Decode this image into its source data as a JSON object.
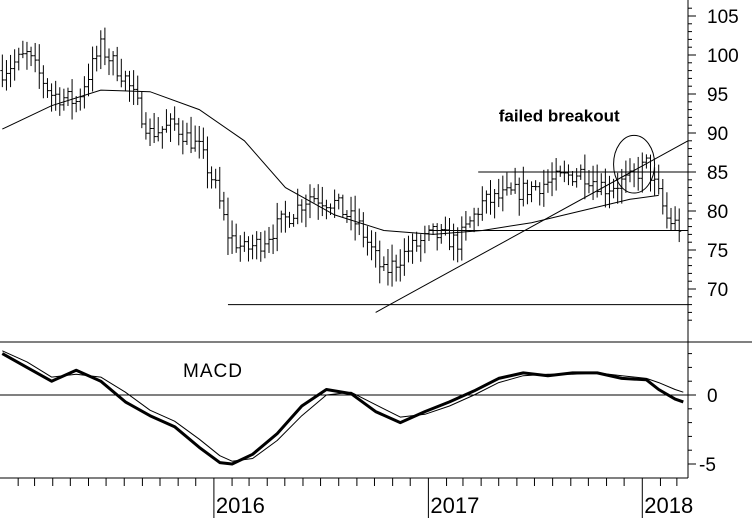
{
  "chart_data": [
    {
      "type": "bar",
      "style": "OHLC weekly bars",
      "title": "",
      "xlabel": "",
      "ylabel": "",
      "ylim": [
        65,
        106
      ],
      "y_ticks": [
        "105",
        "100",
        "95",
        "90",
        "85",
        "80",
        "75",
        "70"
      ],
      "x_ticks": [
        "2016",
        "2017",
        "2018"
      ],
      "x_range": [
        "2015-01-01",
        "2018-03-20"
      ],
      "grid": false,
      "price_close": [
        {
          "x": "2015-01-05",
          "y": 98
        },
        {
          "x": "2015-02-16",
          "y": 100
        },
        {
          "x": "2015-03-30",
          "y": 95
        },
        {
          "x": "2015-05-11",
          "y": 94
        },
        {
          "x": "2015-06-22",
          "y": 101
        },
        {
          "x": "2015-08-03",
          "y": 97
        },
        {
          "x": "2015-09-14",
          "y": 90
        },
        {
          "x": "2015-10-26",
          "y": 91
        },
        {
          "x": "2015-12-07",
          "y": 88
        },
        {
          "x": "2016-01-04",
          "y": 83
        },
        {
          "x": "2016-01-25",
          "y": 77
        },
        {
          "x": "2016-02-22",
          "y": 75
        },
        {
          "x": "2016-03-21",
          "y": 76
        },
        {
          "x": "2016-05-02",
          "y": 79
        },
        {
          "x": "2016-06-13",
          "y": 82
        },
        {
          "x": "2016-07-25",
          "y": 81
        },
        {
          "x": "2016-09-05",
          "y": 78
        },
        {
          "x": "2016-10-17",
          "y": 72
        },
        {
          "x": "2016-11-28",
          "y": 75
        },
        {
          "x": "2017-01-09",
          "y": 77
        },
        {
          "x": "2017-02-20",
          "y": 76
        },
        {
          "x": "2017-04-03",
          "y": 81
        },
        {
          "x": "2017-05-15",
          "y": 82
        },
        {
          "x": "2017-06-26",
          "y": 83
        },
        {
          "x": "2017-08-07",
          "y": 84
        },
        {
          "x": "2017-09-18",
          "y": 85
        },
        {
          "x": "2017-10-30",
          "y": 83
        },
        {
          "x": "2017-12-11",
          "y": 84
        },
        {
          "x": "2018-01-08",
          "y": 86
        },
        {
          "x": "2018-01-29",
          "y": 82
        },
        {
          "x": "2018-02-12",
          "y": 79
        },
        {
          "x": "2018-03-05",
          "y": 78
        }
      ],
      "moving_average": [
        {
          "x": "2015-01-05",
          "y": 90.5
        },
        {
          "x": "2015-03-30",
          "y": 93.5
        },
        {
          "x": "2015-06-22",
          "y": 95.5
        },
        {
          "x": "2015-09-14",
          "y": 95.3
        },
        {
          "x": "2015-12-07",
          "y": 93
        },
        {
          "x": "2016-02-22",
          "y": 89
        },
        {
          "x": "2016-05-02",
          "y": 83
        },
        {
          "x": "2016-07-25",
          "y": 79.5
        },
        {
          "x": "2016-10-17",
          "y": 77.5
        },
        {
          "x": "2017-01-09",
          "y": 77
        },
        {
          "x": "2017-04-03",
          "y": 77.5
        },
        {
          "x": "2017-06-26",
          "y": 78.5
        },
        {
          "x": "2017-09-18",
          "y": 80
        },
        {
          "x": "2017-12-11",
          "y": 81.5
        },
        {
          "x": "2018-01-29",
          "y": 82
        }
      ],
      "trendlines": [
        {
          "from": {
            "x": "2016-10-03",
            "y": 67
          },
          "to": {
            "x": "2018-03-20",
            "y": 89
          }
        },
        {
          "from": {
            "x": "2016-01-25",
            "y": 68
          },
          "to": {
            "x": "2018-03-20",
            "y": 68
          }
        },
        {
          "from": {
            "x": "2017-03-27",
            "y": 85
          },
          "to": {
            "x": "2018-03-20",
            "y": 85
          }
        },
        {
          "from": {
            "x": "2017-01-02",
            "y": 77.5
          },
          "to": {
            "x": "2018-03-20",
            "y": 77.5
          }
        }
      ],
      "annotations": [
        {
          "text": "failed breakout",
          "x": "2017-05-01",
          "y": 91.5
        },
        {
          "shape": "ellipse",
          "cx": "2017-12-18",
          "cy": 86,
          "rx_days": 35,
          "ry": 3.7
        }
      ]
    },
    {
      "type": "line",
      "title": "MACD",
      "ylim": [
        -5.6,
        5.2
      ],
      "y_ticks": [
        "0",
        "-5"
      ],
      "zero_line": true,
      "series": [
        {
          "name": "",
          "style": "thick",
          "points": [
            {
              "x": "2015-01-05",
              "y": 3
            },
            {
              "x": "2015-02-16",
              "y": 2
            },
            {
              "x": "2015-03-30",
              "y": 1
            },
            {
              "x": "2015-05-11",
              "y": 1.8
            },
            {
              "x": "2015-06-22",
              "y": 1
            },
            {
              "x": "2015-08-03",
              "y": -0.5
            },
            {
              "x": "2015-09-14",
              "y": -1.5
            },
            {
              "x": "2015-10-26",
              "y": -2.3
            },
            {
              "x": "2015-12-07",
              "y": -3.8
            },
            {
              "x": "2016-01-11",
              "y": -4.9
            },
            {
              "x": "2016-02-01",
              "y": -5
            },
            {
              "x": "2016-03-07",
              "y": -4.3
            },
            {
              "x": "2016-04-18",
              "y": -2.8
            },
            {
              "x": "2016-05-30",
              "y": -0.8
            },
            {
              "x": "2016-07-11",
              "y": 0.4
            },
            {
              "x": "2016-08-22",
              "y": 0.1
            },
            {
              "x": "2016-10-03",
              "y": -1.2
            },
            {
              "x": "2016-11-14",
              "y": -2.0
            },
            {
              "x": "2016-12-26",
              "y": -1.2
            },
            {
              "x": "2017-02-06",
              "y": -0.5
            },
            {
              "x": "2017-03-20",
              "y": 0.3
            },
            {
              "x": "2017-05-01",
              "y": 1.2
            },
            {
              "x": "2017-06-12",
              "y": 1.6
            },
            {
              "x": "2017-07-24",
              "y": 1.4
            },
            {
              "x": "2017-09-04",
              "y": 1.6
            },
            {
              "x": "2017-10-16",
              "y": 1.6
            },
            {
              "x": "2017-11-27",
              "y": 1.2
            },
            {
              "x": "2018-01-08",
              "y": 1.1
            },
            {
              "x": "2018-01-29",
              "y": 0.4
            },
            {
              "x": "2018-02-26",
              "y": -0.3
            },
            {
              "x": "2018-03-12",
              "y": -0.5
            }
          ]
        },
        {
          "name": "",
          "style": "thin",
          "points": [
            {
              "x": "2015-01-05",
              "y": 3.2
            },
            {
              "x": "2015-02-16",
              "y": 2.4
            },
            {
              "x": "2015-03-30",
              "y": 1.3
            },
            {
              "x": "2015-05-11",
              "y": 1.5
            },
            {
              "x": "2015-06-22",
              "y": 1.3
            },
            {
              "x": "2015-08-03",
              "y": 0.2
            },
            {
              "x": "2015-09-14",
              "y": -1.1
            },
            {
              "x": "2015-10-26",
              "y": -1.9
            },
            {
              "x": "2015-12-07",
              "y": -3.2
            },
            {
              "x": "2016-01-11",
              "y": -4.4
            },
            {
              "x": "2016-02-01",
              "y": -4.8
            },
            {
              "x": "2016-03-07",
              "y": -4.6
            },
            {
              "x": "2016-04-18",
              "y": -3.3
            },
            {
              "x": "2016-05-30",
              "y": -1.5
            },
            {
              "x": "2016-07-11",
              "y": 0.0
            },
            {
              "x": "2016-08-22",
              "y": 0.2
            },
            {
              "x": "2016-10-03",
              "y": -0.7
            },
            {
              "x": "2016-11-14",
              "y": -1.6
            },
            {
              "x": "2016-12-26",
              "y": -1.4
            },
            {
              "x": "2017-02-06",
              "y": -0.8
            },
            {
              "x": "2017-03-20",
              "y": 0.0
            },
            {
              "x": "2017-05-01",
              "y": 0.9
            },
            {
              "x": "2017-06-12",
              "y": 1.4
            },
            {
              "x": "2017-07-24",
              "y": 1.5
            },
            {
              "x": "2017-09-04",
              "y": 1.5
            },
            {
              "x": "2017-10-16",
              "y": 1.6
            },
            {
              "x": "2017-11-27",
              "y": 1.4
            },
            {
              "x": "2018-01-08",
              "y": 1.2
            },
            {
              "x": "2018-01-29",
              "y": 0.9
            },
            {
              "x": "2018-02-26",
              "y": 0.4
            },
            {
              "x": "2018-03-12",
              "y": 0.2
            }
          ]
        }
      ]
    }
  ]
}
